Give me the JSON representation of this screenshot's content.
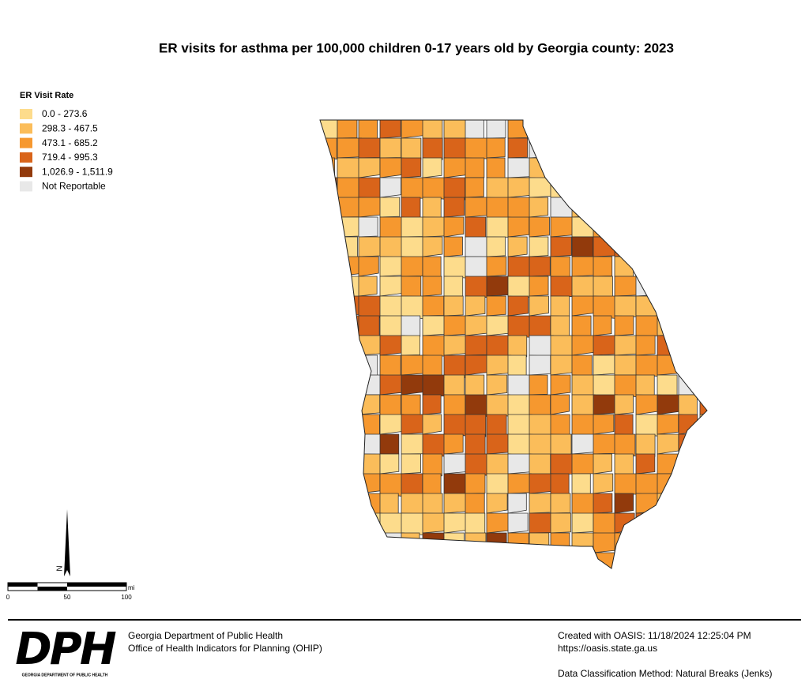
{
  "title": "ER visits for asthma per 100,000 children 0-17 years old by Georgia county: 2023",
  "legend": {
    "title": "ER Visit Rate",
    "items": [
      {
        "label": "0.0 - 273.6",
        "color": "#fddc8c"
      },
      {
        "label": "298.3 - 467.5",
        "color": "#fbbd5a"
      },
      {
        "label": "473.1 - 685.2",
        "color": "#f6982f"
      },
      {
        "label": "719.4 - 995.3",
        "color": "#d9641a"
      },
      {
        "label": "1,026.9 - 1,511.9",
        "color": "#923a0c"
      },
      {
        "label": "Not Reportable",
        "color": "#e8e8e8"
      }
    ]
  },
  "north": "N",
  "scale": {
    "ticks": [
      0,
      50,
      100
    ],
    "unit": "mi"
  },
  "footer": {
    "logo": "DPH",
    "logo_caption": "GEORGIA DEPARTMENT OF PUBLIC HEALTH",
    "org": "Georgia Department of Public Health",
    "office": "Office of Health Indicators for Planning (OHIP)",
    "created": "Created with OASIS: 11/18/2024 12:25:04 PM",
    "url": "https://oasis.state.ga.us",
    "method": "Data Classification Method: Natural Breaks (Jenks)"
  }
}
